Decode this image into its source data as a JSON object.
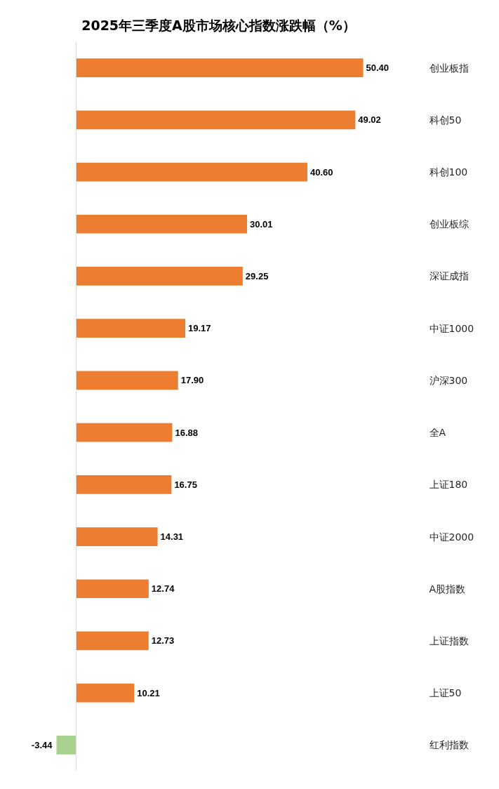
{
  "chart_data": {
    "type": "bar",
    "orientation": "horizontal",
    "title": "2025年三季度A股市场核心指数涨跌幅（%）",
    "categories": [
      "创业板指",
      "科创50",
      "科创100",
      "创业板综",
      "深证成指",
      "中证1000",
      "沪深300",
      "全A",
      "上证180",
      "中证2000",
      "A股指数",
      "上证指数",
      "上证50",
      "红利指数"
    ],
    "values": [
      50.4,
      49.02,
      40.6,
      30.01,
      29.25,
      19.17,
      17.9,
      16.88,
      16.75,
      14.31,
      12.74,
      12.73,
      10.21,
      -3.44
    ],
    "value_labels": [
      "50.40",
      "49.02",
      "40.60",
      "30.01",
      "29.25",
      "19.17",
      "17.90",
      "16.88",
      "16.75",
      "14.31",
      "12.74",
      "12.73",
      "10.21",
      "-3.44"
    ],
    "colors": [
      "#ed7d31",
      "#ed7d31",
      "#ed7d31",
      "#ed7d31",
      "#ed7d31",
      "#ed7d31",
      "#ed7d31",
      "#ed7d31",
      "#ed7d31",
      "#ed7d31",
      "#ed7d31",
      "#ed7d31",
      "#ed7d31",
      "#a9d18e"
    ]
  }
}
